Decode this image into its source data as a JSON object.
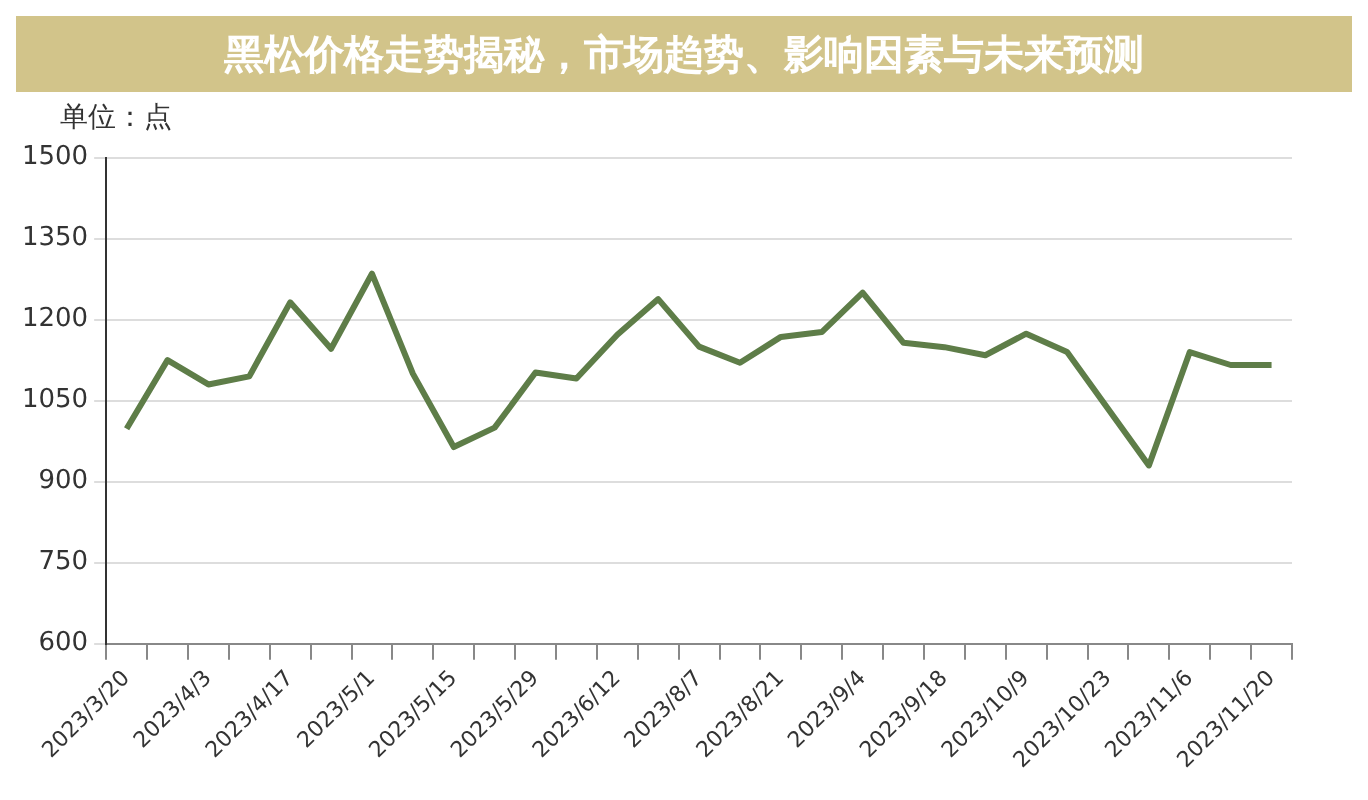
{
  "chart_data": {
    "type": "line",
    "title": "黑松价格走势揭秘，市场趋势、影响因素与未来预测",
    "ylabel": "单位：点",
    "categories": [
      "2023/3/20",
      null,
      "2023/4/3",
      null,
      "2023/4/17",
      null,
      "2023/5/1",
      null,
      "2023/5/15",
      null,
      "2023/5/29",
      null,
      "2023/6/12",
      null,
      "2023/8/7",
      null,
      "2023/8/21",
      null,
      "2023/9/4",
      null,
      "2023/9/18",
      null,
      "2023/10/9",
      null,
      "2023/10/23",
      null,
      "2023/11/6",
      null,
      "2023/11/20"
    ],
    "series": [
      {
        "color": "#5e7d48",
        "values": [
          998,
          1125,
          1080,
          1095,
          1232,
          1146,
          1285,
          1100,
          964,
          1000,
          1102,
          1091,
          1172,
          1238,
          1150,
          1120,
          1168,
          1177,
          1250,
          1157,
          1149,
          1134,
          1174,
          1140,
          1035,
          930,
          1140,
          1116,
          1116
        ]
      }
    ],
    "ylim": [
      600,
      1500
    ],
    "yticks": [
      600,
      750,
      900,
      1050,
      1200,
      1350,
      1500
    ],
    "grid": "y",
    "marker": "none",
    "line_style": "solid",
    "legend": false
  }
}
